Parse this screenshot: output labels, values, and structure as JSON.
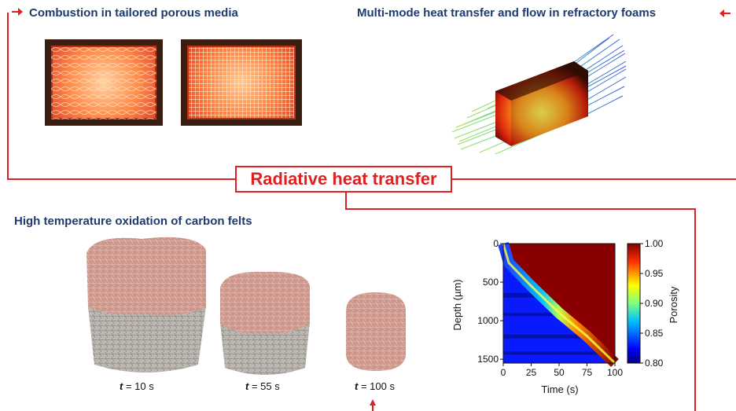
{
  "header": {
    "left_heading": "Combustion in tailored porous media",
    "right_heading": "Multi-mode heat transfer and flow in refractory foams"
  },
  "center_box_label": "Radiative heat transfer",
  "section_heading": "High temperature oxidation of carbon felts",
  "felt_samples": [
    {
      "t_symbol": "t",
      "value": " = 10 s"
    },
    {
      "t_symbol": "t",
      "value": " = 55 s"
    },
    {
      "t_symbol": "t",
      "value": " = 100 s"
    }
  ],
  "colors": {
    "accent_red": "#e02020",
    "heading_navy": "#1f3a6e"
  },
  "chart_data": {
    "type": "heatmap",
    "xlabel": "Time (s)",
    "ylabel": "Depth (µm)",
    "colorbar_label": "Porosity",
    "x_ticks": [
      "0",
      "25",
      "50",
      "75",
      "100"
    ],
    "y_ticks": [
      "0",
      "500",
      "1000",
      "1500"
    ],
    "colorbar_ticks": [
      "1.00",
      "0.95",
      "0.90",
      "0.85",
      "0.80"
    ],
    "xlim": [
      0,
      100
    ],
    "ylim": [
      1550,
      0
    ],
    "colorbar_range": [
      0.8,
      1.0
    ],
    "front": {
      "x": [
        0,
        5,
        25,
        50,
        75,
        100
      ],
      "depth": [
        0,
        250,
        550,
        900,
        1200,
        1550
      ]
    }
  }
}
